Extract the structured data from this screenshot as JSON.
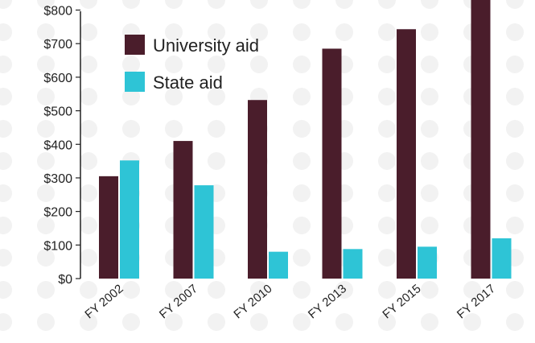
{
  "chart_data": {
    "type": "bar",
    "title": "",
    "xlabel": "",
    "ylabel": "",
    "categories": [
      "FY 2002",
      "FY 2007",
      "FY 2010",
      "FY 2013",
      "FY 2015",
      "FY 2017"
    ],
    "series": [
      {
        "name": "University aid",
        "color": "#4a1d2b",
        "values": [
          305,
          410,
          532,
          685,
          743,
          832
        ]
      },
      {
        "name": "State aid",
        "color": "#2ec4d6",
        "values": [
          352,
          278,
          80,
          88,
          95,
          120
        ]
      }
    ],
    "ylim": [
      0,
      830
    ],
    "yticks": [
      0,
      100,
      200,
      300,
      400,
      500,
      600,
      700,
      800
    ],
    "ytick_labels": [
      "$0",
      "$100",
      "$200",
      "$300",
      "$400",
      "$500",
      "$600",
      "$700",
      "$800"
    ],
    "grid": false,
    "legend_position": "top-left",
    "background_pattern_color": "#f2f2f2"
  }
}
